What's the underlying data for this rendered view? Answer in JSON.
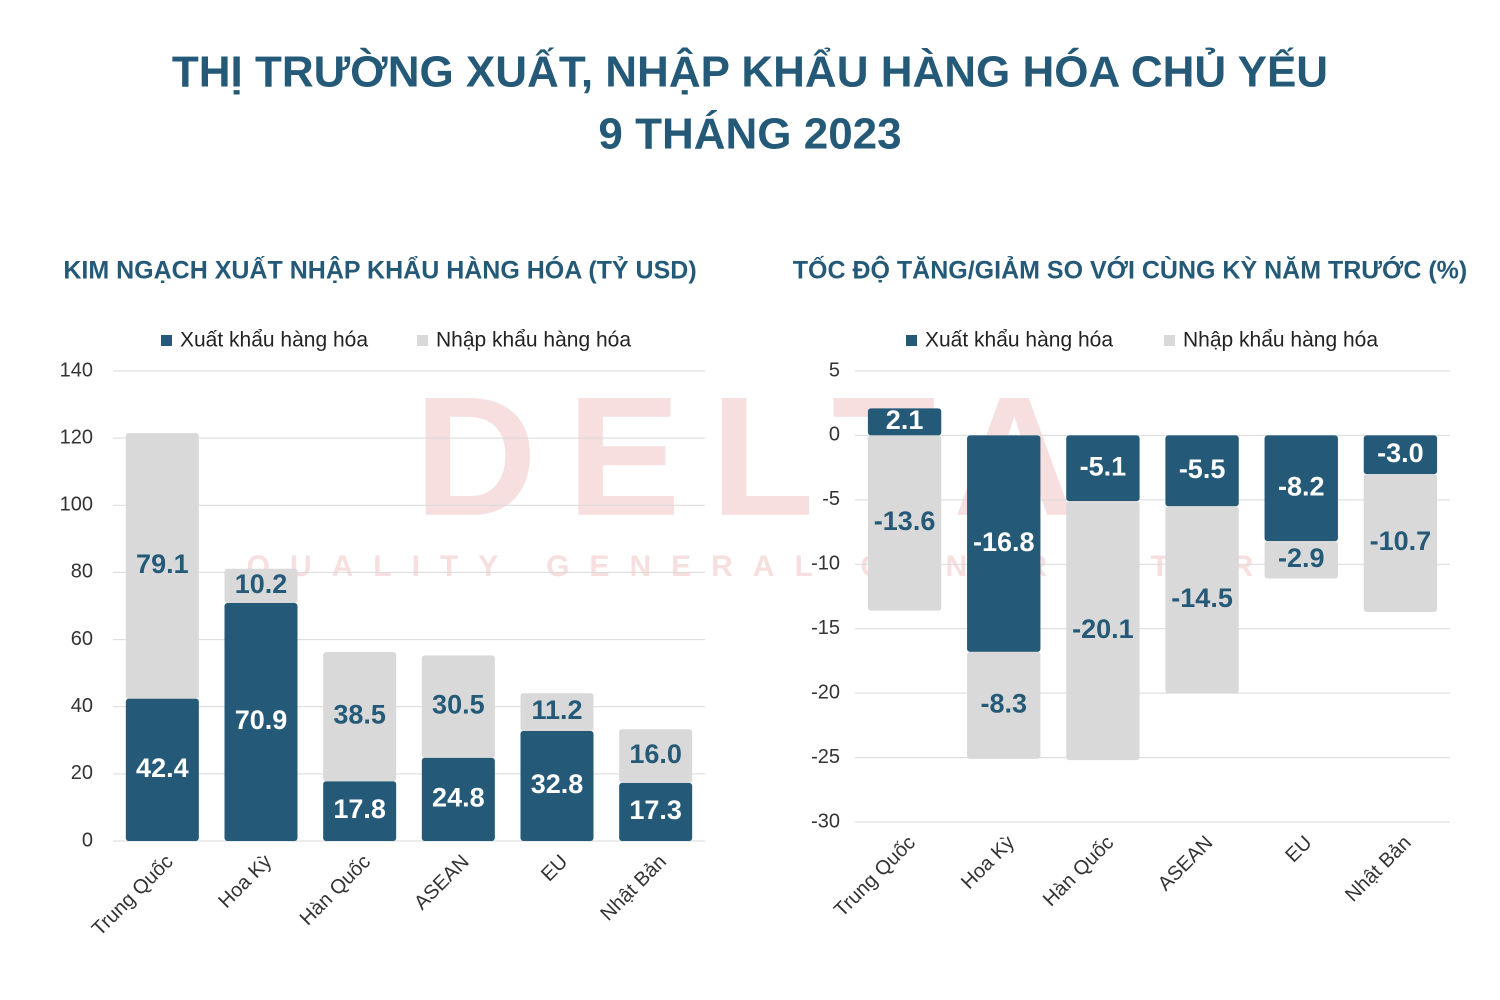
{
  "title": [
    "THỊ TRƯỜNG XUẤT, NHẬP KHẨU HÀNG HÓA CHỦ YẾU",
    "9 THÁNG 2023"
  ],
  "watermark": {
    "logo": "DELTA",
    "tagline": "QUALITY GENERAL CONTRACTOR"
  },
  "chart_data": [
    {
      "type": "stacked_bar",
      "title": "KIM NGẠCH XUẤT NHẬP KHẨU HÀNG HÓA (TỶ USD)",
      "categories": [
        "Trung Quốc",
        "Hoa Kỳ",
        "Hàn Quốc",
        "ASEAN",
        "EU",
        "Nhật Bản"
      ],
      "series": [
        {
          "name": "Xuất khẩu hàng hóa",
          "color": "#245a78",
          "label_color": "#ffffff",
          "values": [
            42.4,
            70.9,
            17.8,
            24.8,
            32.8,
            17.3
          ],
          "value_labels": [
            "42.4",
            "70.9",
            "17.8",
            "24.8",
            "32.8",
            "17.3"
          ]
        },
        {
          "name": "Nhập khẩu hàng hóa",
          "color": "#d9d9d9",
          "label_color": "#245a78",
          "values": [
            79.1,
            10.2,
            38.5,
            30.5,
            11.2,
            16.0
          ],
          "value_labels": [
            "79.1",
            "10.2",
            "38.5",
            "30.5",
            "11.2",
            "16.0"
          ]
        }
      ],
      "ylim": [
        0,
        140
      ],
      "yticks": [
        0,
        20,
        40,
        60,
        80,
        100,
        120,
        140
      ],
      "grid": true,
      "legend": "top"
    },
    {
      "type": "stacked_bar",
      "title": "TỐC ĐỘ TĂNG/GIẢM SO VỚI CÙNG KỲ NĂM TRƯỚC (%)",
      "categories": [
        "Trung Quốc",
        "Hoa Kỳ",
        "Hàn Quốc",
        "ASEAN",
        "EU",
        "Nhật Bản"
      ],
      "series": [
        {
          "name": "Xuất khẩu hàng hóa",
          "color": "#245a78",
          "label_color": "#ffffff",
          "values": [
            2.1,
            -16.8,
            -5.1,
            -5.5,
            -8.2,
            -3.0
          ],
          "value_labels": [
            "2.1",
            "-16.8",
            "-5.1",
            "-5.5",
            "-8.2",
            "-3.0"
          ]
        },
        {
          "name": "Nhập khẩu hàng hóa",
          "color": "#d9d9d9",
          "label_color": "#245a78",
          "values": [
            -13.6,
            -8.3,
            -20.1,
            -14.5,
            -2.9,
            -10.7
          ],
          "value_labels": [
            "-13.6",
            "-8.3",
            "-20.1",
            "-14.5",
            "-2.9",
            "-10.7"
          ]
        }
      ],
      "ylim": [
        -30,
        5
      ],
      "yticks": [
        5,
        0,
        -5,
        -10,
        -15,
        -20,
        -25,
        -30
      ],
      "grid": true,
      "legend": "top"
    }
  ]
}
